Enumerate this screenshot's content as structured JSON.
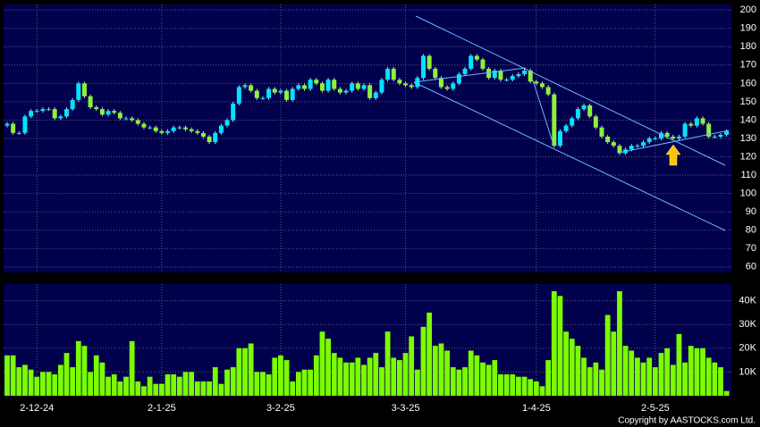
{
  "chart_data": [
    {
      "type": "candlestick",
      "categories": [
        null,
        null,
        null,
        null,
        null,
        "2-12-24",
        null,
        null,
        null,
        null,
        null,
        null,
        null,
        null,
        null,
        null,
        null,
        null,
        null,
        null,
        null,
        null,
        null,
        null,
        null,
        null,
        "2-1-25",
        null,
        null,
        null,
        null,
        null,
        null,
        null,
        null,
        null,
        null,
        null,
        null,
        null,
        null,
        null,
        null,
        null,
        null,
        null,
        "3-2-25",
        null,
        null,
        null,
        null,
        null,
        null,
        null,
        null,
        null,
        null,
        null,
        null,
        null,
        null,
        null,
        null,
        null,
        null,
        null,
        null,
        "3-3-25",
        null,
        null,
        null,
        null,
        null,
        null,
        null,
        null,
        null,
        null,
        null,
        null,
        null,
        null,
        null,
        null,
        null,
        null,
        null,
        null,
        null,
        "1-4-25",
        null,
        null,
        null,
        null,
        null,
        null,
        null,
        null,
        null,
        null,
        null,
        null,
        null,
        null,
        null,
        null,
        null,
        null,
        null,
        "2-5-25",
        null,
        null,
        null,
        null,
        null,
        null,
        null,
        null,
        null,
        null,
        null,
        null
      ],
      "open": [
        137,
        138,
        133,
        133,
        142,
        145,
        145,
        146,
        146,
        141,
        142,
        146,
        151,
        160,
        153,
        147,
        146,
        143,
        145,
        144,
        141,
        141,
        140,
        138,
        136,
        136,
        134,
        133,
        134,
        136,
        136,
        135,
        134,
        133,
        131,
        128,
        133,
        137,
        140,
        149,
        158,
        159,
        156,
        152,
        152,
        157,
        155,
        156,
        151,
        157,
        159,
        157,
        162,
        160,
        156,
        162,
        157,
        155,
        156,
        160,
        157,
        159,
        152,
        155,
        162,
        168,
        162,
        160,
        159,
        158,
        163,
        175,
        168,
        163,
        158,
        157,
        160,
        165,
        168,
        175,
        173,
        168,
        163,
        167,
        162,
        162,
        164,
        165,
        167,
        161,
        160,
        158,
        154,
        126,
        134,
        137,
        141,
        146,
        148,
        142,
        136,
        131,
        128,
        126,
        122,
        124,
        126,
        126,
        128,
        130,
        130,
        133,
        131,
        130,
        131,
        138,
        137,
        141,
        138,
        131,
        131,
        132
      ],
      "high": [
        139,
        139,
        134,
        143,
        146,
        146,
        147,
        147,
        147,
        143,
        147,
        152,
        161,
        161,
        154,
        148,
        147,
        146,
        146,
        145,
        142,
        142,
        141,
        139,
        137,
        137,
        135,
        135,
        137,
        137,
        137,
        136,
        135,
        134,
        132,
        134,
        138,
        141,
        150,
        159,
        160,
        160,
        157,
        153,
        158,
        158,
        157,
        157,
        158,
        160,
        160,
        163,
        163,
        161,
        163,
        163,
        158,
        157,
        161,
        161,
        160,
        160,
        156,
        163,
        169,
        169,
        163,
        161,
        160,
        164,
        176,
        176,
        169,
        164,
        159,
        161,
        166,
        169,
        176,
        176,
        174,
        169,
        168,
        168,
        163,
        165,
        166,
        168,
        168,
        162,
        161,
        159,
        155,
        135,
        138,
        142,
        147,
        149,
        149,
        143,
        137,
        132,
        129,
        127,
        125,
        127,
        127,
        129,
        131,
        131,
        134,
        134,
        132,
        132,
        139,
        139,
        142,
        142,
        139,
        132,
        133,
        135
      ],
      "low": [
        136,
        132,
        132,
        132,
        141,
        144,
        144,
        145,
        140,
        140,
        141,
        145,
        150,
        152,
        146,
        145,
        142,
        142,
        143,
        140,
        140,
        139,
        137,
        135,
        135,
        133,
        132,
        132,
        133,
        135,
        134,
        133,
        132,
        130,
        127,
        127,
        132,
        136,
        139,
        148,
        157,
        155,
        151,
        151,
        151,
        154,
        154,
        150,
        150,
        156,
        156,
        156,
        159,
        155,
        155,
        156,
        154,
        154,
        155,
        156,
        156,
        151,
        151,
        154,
        161,
        161,
        159,
        158,
        157,
        157,
        162,
        167,
        162,
        157,
        156,
        156,
        159,
        164,
        167,
        172,
        167,
        162,
        162,
        161,
        161,
        161,
        163,
        164,
        160,
        159,
        157,
        153,
        125,
        125,
        133,
        136,
        140,
        145,
        141,
        135,
        130,
        127,
        125,
        121,
        121,
        123,
        125,
        125,
        127,
        129,
        129,
        130,
        129,
        129,
        130,
        136,
        136,
        137,
        130,
        130,
        130,
        131
      ],
      "close": [
        138,
        133,
        133,
        142,
        145,
        145,
        146,
        146,
        141,
        142,
        146,
        151,
        160,
        153,
        147,
        146,
        143,
        145,
        144,
        141,
        141,
        140,
        138,
        136,
        136,
        134,
        133,
        134,
        136,
        136,
        135,
        134,
        133,
        131,
        128,
        133,
        137,
        140,
        149,
        158,
        159,
        156,
        152,
        152,
        157,
        155,
        156,
        151,
        157,
        159,
        157,
        162,
        160,
        156,
        162,
        157,
        155,
        156,
        160,
        157,
        159,
        152,
        155,
        162,
        168,
        162,
        160,
        159,
        158,
        163,
        175,
        168,
        163,
        158,
        157,
        160,
        165,
        168,
        175,
        173,
        168,
        163,
        167,
        162,
        162,
        164,
        165,
        167,
        161,
        160,
        158,
        154,
        126,
        134,
        137,
        141,
        146,
        148,
        142,
        136,
        131,
        128,
        126,
        122,
        124,
        126,
        126,
        128,
        130,
        130,
        133,
        131,
        130,
        131,
        138,
        137,
        141,
        138,
        131,
        131,
        132,
        134
      ],
      "up_color": "#00e5ff",
      "down_color": "#8cf23a",
      "ylim": [
        57,
        203
      ],
      "yticks": [
        60,
        70,
        80,
        90,
        100,
        110,
        120,
        130,
        140,
        150,
        160,
        170,
        180,
        190,
        200
      ],
      "grid": true
    },
    {
      "type": "bar",
      "values": [
        17000,
        17000,
        12000,
        13000,
        11000,
        8000,
        10000,
        10000,
        9000,
        13000,
        18000,
        12000,
        23000,
        21000,
        10000,
        17000,
        14000,
        8000,
        9000,
        6000,
        8000,
        23000,
        6000,
        4000,
        8000,
        5000,
        5000,
        9000,
        9000,
        8000,
        10000,
        10000,
        6000,
        6000,
        6000,
        12000,
        5000,
        11000,
        12000,
        20000,
        20000,
        22000,
        10000,
        10000,
        9000,
        16000,
        17000,
        15000,
        6000,
        10000,
        11000,
        11000,
        17000,
        27000,
        24000,
        18000,
        16000,
        14000,
        14000,
        16000,
        13000,
        16000,
        18000,
        12000,
        27000,
        16000,
        15000,
        18000,
        25000,
        11000,
        29000,
        35000,
        21000,
        22000,
        19000,
        12000,
        11000,
        12000,
        19000,
        17000,
        14000,
        13000,
        15000,
        9000,
        9000,
        9000,
        8000,
        8000,
        7000,
        6000,
        4000,
        15000,
        44000,
        42000,
        27000,
        24000,
        21000,
        16000,
        12000,
        14000,
        11000,
        34000,
        27000,
        44000,
        21000,
        19000,
        16000,
        14000,
        16000,
        12000,
        18000,
        20000,
        13000,
        26000,
        14000,
        21000,
        20000,
        20000,
        16000,
        14000,
        12000,
        2000
      ],
      "color": "#7cfc00",
      "ylim": [
        0,
        47000
      ],
      "yticks": [
        {
          "value": 10000,
          "label": "10K"
        },
        {
          "value": 20000,
          "label": "20K"
        },
        {
          "value": 30000,
          "label": "30K"
        },
        {
          "value": 40000,
          "label": "40K"
        }
      ],
      "grid": true
    }
  ],
  "copyright": "Copyright by AASTOCKS.com Ltd."
}
